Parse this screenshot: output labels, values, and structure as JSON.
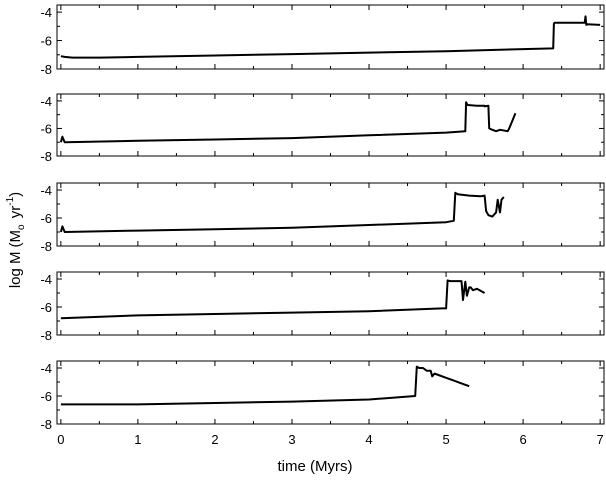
{
  "chart_data": {
    "type": "line",
    "xlabel": "time (Myrs)",
    "ylabel_main": "log M",
    "ylabel_unit_open": "(M",
    "ylabel_unit_sub": "o",
    "ylabel_unit_mid": " yr",
    "ylabel_unit_sup": "-1",
    "ylabel_unit_close": ")",
    "xlim": [
      -0.05,
      7.05
    ],
    "ylim": [
      -8,
      -3.5
    ],
    "x_ticks": [
      0,
      1,
      2,
      3,
      4,
      5,
      6,
      7
    ],
    "x_tick_labels": [
      "0",
      "1",
      "2",
      "3",
      "4",
      "5",
      "6",
      "7"
    ],
    "y_ticks": [
      -4,
      -6,
      -8
    ],
    "y_tick_labels": [
      "-4",
      "-6",
      "-8"
    ],
    "grid": false,
    "panels": [
      {
        "x": [
          0.0,
          0.05,
          0.15,
          0.5,
          1.0,
          2.0,
          3.0,
          4.0,
          5.0,
          6.0,
          6.39,
          6.4,
          6.41,
          6.8,
          6.81,
          6.82,
          6.83,
          7.0
        ],
        "y": [
          -7.1,
          -7.15,
          -7.2,
          -7.2,
          -7.15,
          -7.05,
          -6.95,
          -6.85,
          -6.75,
          -6.6,
          -6.55,
          -4.8,
          -4.75,
          -4.75,
          -4.3,
          -4.9,
          -4.85,
          -4.9
        ]
      },
      {
        "x": [
          0.0,
          0.02,
          0.05,
          1.0,
          2.0,
          3.0,
          4.0,
          5.0,
          5.25,
          5.26,
          5.28,
          5.4,
          5.5,
          5.5,
          5.55,
          5.56,
          5.6,
          5.65,
          5.7,
          5.8,
          5.82,
          5.85,
          5.9
        ],
        "y": [
          -7.0,
          -6.6,
          -7.0,
          -6.9,
          -6.8,
          -6.7,
          -6.5,
          -6.3,
          -6.2,
          -4.1,
          -4.3,
          -4.35,
          -4.35,
          -4.4,
          -4.35,
          -6.0,
          -6.1,
          -6.2,
          -6.1,
          -6.2,
          -6.0,
          -5.6,
          -4.9
        ]
      },
      {
        "x": [
          0.0,
          0.02,
          0.05,
          1.0,
          2.0,
          3.0,
          4.0,
          5.0,
          5.1,
          5.12,
          5.15,
          5.3,
          5.45,
          5.5,
          5.52,
          5.55,
          5.6,
          5.65,
          5.67,
          5.7,
          5.72,
          5.75
        ],
        "y": [
          -7.0,
          -6.6,
          -7.0,
          -6.9,
          -6.8,
          -6.7,
          -6.5,
          -6.3,
          -6.2,
          -4.2,
          -4.3,
          -4.4,
          -4.45,
          -4.4,
          -5.5,
          -5.8,
          -5.9,
          -5.6,
          -4.7,
          -5.6,
          -4.7,
          -4.5
        ]
      },
      {
        "x": [
          0.0,
          1.0,
          2.0,
          3.0,
          4.0,
          4.95,
          5.0,
          5.02,
          5.05,
          5.2,
          5.22,
          5.25,
          5.27,
          5.3,
          5.32,
          5.35,
          5.4,
          5.5
        ],
        "y": [
          -6.8,
          -6.6,
          -6.5,
          -6.4,
          -6.3,
          -6.1,
          -6.1,
          -4.1,
          -4.15,
          -4.15,
          -5.5,
          -4.2,
          -5.2,
          -4.6,
          -4.6,
          -4.8,
          -4.7,
          -5.0
        ]
      },
      {
        "x": [
          0.0,
          1.0,
          2.0,
          3.0,
          4.0,
          4.6,
          4.62,
          4.65,
          4.7,
          4.75,
          4.8,
          4.82,
          4.85,
          4.9,
          5.0,
          5.1,
          5.2,
          5.3
        ],
        "y": [
          -6.6,
          -6.6,
          -6.5,
          -6.4,
          -6.25,
          -6.0,
          -3.9,
          -4.0,
          -4.0,
          -4.2,
          -4.2,
          -4.6,
          -4.4,
          -4.5,
          -4.7,
          -4.9,
          -5.1,
          -5.3
        ]
      }
    ]
  }
}
